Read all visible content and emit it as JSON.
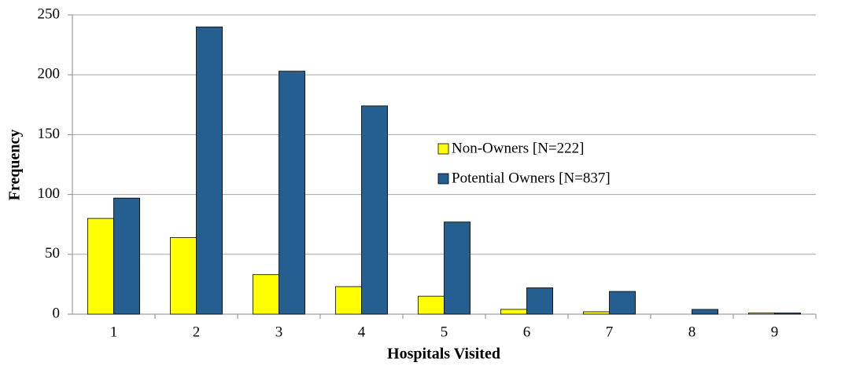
{
  "chart_data": {
    "type": "bar",
    "x_label": "Hospitals Visited",
    "y_label": "Frequency",
    "categories": [
      "1",
      "2",
      "3",
      "4",
      "5",
      "6",
      "7",
      "8",
      "9"
    ],
    "series": [
      {
        "name": "Non-Owners [N=222]",
        "color": "#ffff00",
        "values": [
          80,
          64,
          33,
          23,
          15,
          4,
          2,
          0,
          1
        ]
      },
      {
        "name": "Potential Owners [N=837]",
        "color": "#255e91",
        "values": [
          97,
          240,
          203,
          174,
          77,
          22,
          19,
          4,
          1
        ]
      }
    ],
    "ylim": [
      0,
      250
    ],
    "yticks": [
      0,
      50,
      100,
      150,
      200,
      250
    ],
    "grid": true
  }
}
